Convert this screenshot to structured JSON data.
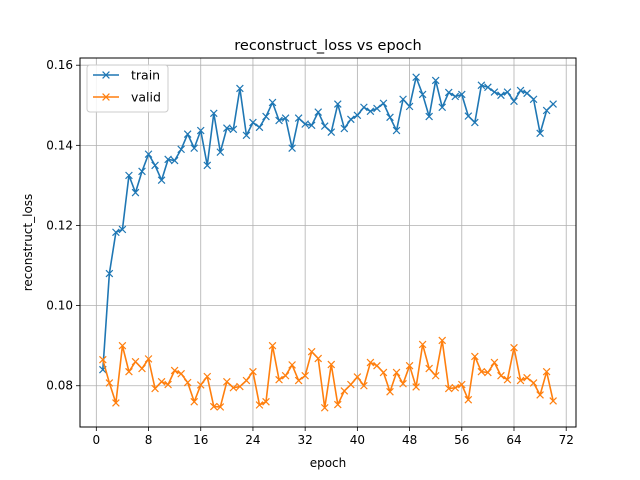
{
  "chart_data": {
    "type": "line",
    "title": "reconstruct_loss vs epoch",
    "xlabel": "epoch",
    "ylabel": "reconstruct_loss",
    "xlim": [
      -2.5,
      73.5
    ],
    "ylim": [
      0.0697,
      0.1618
    ],
    "xticks": [
      0,
      8,
      16,
      24,
      32,
      40,
      48,
      56,
      64,
      72
    ],
    "yticks": [
      0.08,
      0.1,
      0.12,
      0.14,
      0.16
    ],
    "ytick_labels": [
      "0.08",
      "0.10",
      "0.12",
      "0.14",
      "0.16"
    ],
    "grid": true,
    "legend_position": "top-left",
    "marker": "x",
    "x": [
      1,
      2,
      3,
      4,
      5,
      6,
      7,
      8,
      9,
      10,
      11,
      12,
      13,
      14,
      15,
      16,
      17,
      18,
      19,
      20,
      21,
      22,
      23,
      24,
      25,
      26,
      27,
      28,
      29,
      30,
      31,
      32,
      33,
      34,
      35,
      36,
      37,
      38,
      39,
      40,
      41,
      42,
      43,
      44,
      45,
      46,
      47,
      48,
      49,
      50,
      51,
      52,
      53,
      54,
      55,
      56,
      57,
      58,
      59,
      60,
      61,
      62,
      63,
      64,
      65,
      66,
      67,
      68,
      69,
      70
    ],
    "series": [
      {
        "name": "train",
        "color": "#1f77b4",
        "values": [
          0.084,
          0.108,
          0.1183,
          0.119,
          0.1325,
          0.1282,
          0.1335,
          0.1378,
          0.135,
          0.1313,
          0.1365,
          0.1362,
          0.139,
          0.1428,
          0.1393,
          0.1437,
          0.135,
          0.148,
          0.1383,
          0.1443,
          0.144,
          0.1542,
          0.1425,
          0.1457,
          0.1445,
          0.1472,
          0.1507,
          0.1462,
          0.1468,
          0.1393,
          0.1468,
          0.1453,
          0.145,
          0.1483,
          0.1448,
          0.1433,
          0.1503,
          0.1442,
          0.1465,
          0.1475,
          0.1495,
          0.1485,
          0.1492,
          0.1505,
          0.147,
          0.1437,
          0.1515,
          0.1497,
          0.157,
          0.1527,
          0.1472,
          0.1562,
          0.1495,
          0.1532,
          0.1522,
          0.1527,
          0.1473,
          0.1457,
          0.155,
          0.1545,
          0.1533,
          0.1525,
          0.1533,
          0.151,
          0.1537,
          0.153,
          0.1515,
          0.143,
          0.1487,
          0.1503
        ]
      },
      {
        "name": "valid",
        "color": "#ff7f0e",
        "values": [
          0.0865,
          0.0807,
          0.0757,
          0.09,
          0.0835,
          0.086,
          0.0843,
          0.0867,
          0.0793,
          0.081,
          0.0803,
          0.0838,
          0.083,
          0.0808,
          0.076,
          0.0802,
          0.0823,
          0.0748,
          0.0747,
          0.081,
          0.0795,
          0.0798,
          0.0813,
          0.0835,
          0.0752,
          0.076,
          0.09,
          0.0815,
          0.0825,
          0.0852,
          0.0813,
          0.0825,
          0.0885,
          0.0868,
          0.0745,
          0.0853,
          0.0753,
          0.0787,
          0.0803,
          0.0822,
          0.08,
          0.0858,
          0.085,
          0.0833,
          0.0785,
          0.0833,
          0.0805,
          0.085,
          0.0797,
          0.0903,
          0.0843,
          0.0825,
          0.0913,
          0.0793,
          0.0795,
          0.0803,
          0.0765,
          0.0873,
          0.0835,
          0.0833,
          0.0858,
          0.0825,
          0.0815,
          0.0895,
          0.0813,
          0.082,
          0.0807,
          0.0777,
          0.0835,
          0.0762
        ]
      }
    ]
  }
}
